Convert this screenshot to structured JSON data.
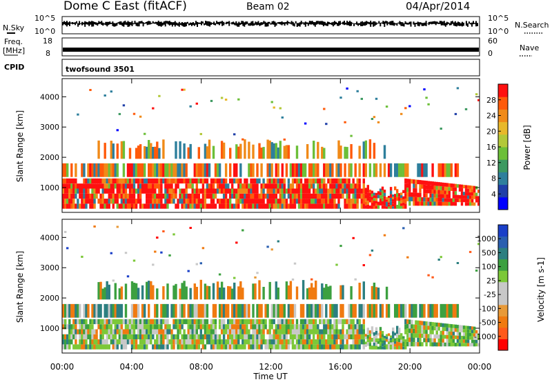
{
  "header": {
    "station": "Dome C East (fitACF)",
    "beam": "Beam 02",
    "date": "04/Apr/2014"
  },
  "strips": {
    "nsky_label": "N.Sky",
    "nsearch_label": "N.Search",
    "noise_ticks": [
      "10^5",
      "10^0"
    ],
    "freq_label_1": "Freq.",
    "freq_label_2": "[MHz]",
    "freq_ticks": [
      "18",
      "8"
    ],
    "nave_label": "Nave",
    "nave_ticks": [
      "60",
      "0"
    ],
    "cpid_label": "CPID",
    "cpid_value": "twofsound 3501"
  },
  "chart_data": [
    {
      "type": "heatmap",
      "quantity": "Power",
      "ylabel": "Slant Range [km]",
      "yticks": [
        "4000",
        "3000",
        "2000",
        "1000"
      ],
      "ylim": [
        180,
        4600
      ],
      "colorbar": {
        "label": "Power [dB]",
        "ticks": [
          "28",
          "24",
          "20",
          "16",
          "12",
          "8",
          "4"
        ],
        "colors": [
          "#0000ff",
          "#1f3fa8",
          "#2e7f9c",
          "#3c9960",
          "#6cbf38",
          "#b2c838",
          "#e8b82a",
          "#f08a18",
          "#ff5a0a",
          "#ff1010"
        ]
      }
    },
    {
      "type": "heatmap",
      "quantity": "Velocity",
      "ylabel": "Slant Range [km]",
      "yticks": [
        "4000",
        "3000",
        "2000",
        "1000"
      ],
      "ylim": [
        180,
        4600
      ],
      "colorbar": {
        "label": "Velocity [m s-1]",
        "ticks": [
          "1000",
          "500",
          "100",
          "25",
          "-25",
          "-100",
          "-500",
          "-1000"
        ],
        "colors": [
          "#ff0000",
          "#ff5a1a",
          "#f07a10",
          "#e89a38",
          "#c8c8c8",
          "#c8c8c8",
          "#7cc838",
          "#3ca040",
          "#2c7f80",
          "#2a5fb0",
          "#1a3fc8"
        ]
      }
    }
  ],
  "xaxis": {
    "ticks": [
      "00:00",
      "04:00",
      "08:00",
      "12:00",
      "16:00",
      "20:00",
      "00:00"
    ],
    "label": "Time UT"
  }
}
